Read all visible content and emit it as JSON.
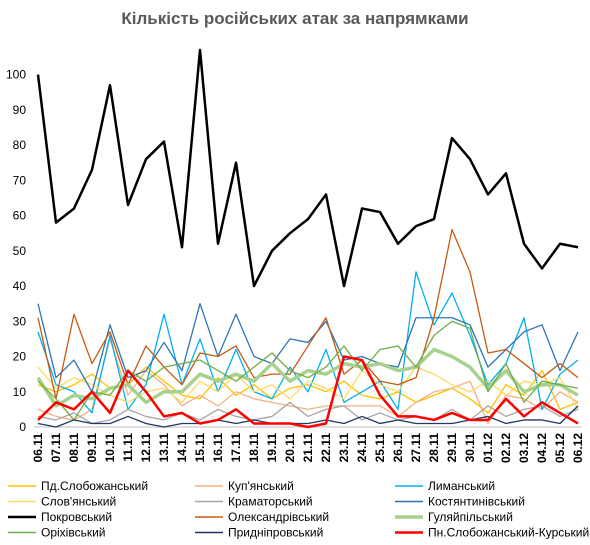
{
  "chart_data": {
    "type": "line",
    "title": "Кількість російських атак за напрямками",
    "categories": [
      "06.11",
      "07.11",
      "08.11",
      "09.11",
      "10.11",
      "11.11",
      "12.11",
      "13.11",
      "14.11",
      "15.11",
      "16.11",
      "17.11",
      "18.11",
      "19.11",
      "20.11",
      "21.11",
      "22.11",
      "23.11",
      "24.11",
      "25.11",
      "26.11",
      "27.11",
      "28.11",
      "29.11",
      "30.11",
      "01.12",
      "02.12",
      "03.12",
      "04.12",
      "05.12",
      "06.12"
    ],
    "ylim": [
      0,
      105
    ],
    "yticks": [
      0,
      10,
      20,
      30,
      40,
      50,
      60,
      70,
      80,
      90,
      100
    ],
    "grid": false,
    "series": [
      {
        "name": "Пд.Слобожанський",
        "color": "#ffc000",
        "values": [
          12,
          10,
          12,
          15,
          11,
          12,
          17,
          13,
          9,
          8,
          14,
          9,
          12,
          8,
          11,
          12,
          10,
          13,
          9,
          8,
          10,
          7,
          9,
          11,
          8,
          4,
          12,
          9,
          16,
          5,
          7
        ]
      },
      {
        "name": "Куп'янський",
        "color": "#f4b183",
        "values": [
          5,
          3,
          2,
          5,
          25,
          9,
          16,
          12,
          6,
          9,
          6,
          10,
          8,
          7,
          6,
          5,
          6,
          6,
          6,
          6,
          3,
          7,
          10,
          11,
          13,
          1,
          9,
          8,
          5,
          10,
          7
        ]
      },
      {
        "name": "Лиманський",
        "color": "#00b0f0",
        "values": [
          27,
          12,
          10,
          4,
          26,
          5,
          12,
          32,
          12,
          25,
          10,
          22,
          10,
          8,
          17,
          10,
          22,
          7,
          10,
          13,
          5,
          44,
          29,
          38,
          26,
          12,
          18,
          31,
          5,
          15,
          19
        ]
      },
      {
        "name": "Слов'янський",
        "color": "#ffd966",
        "values": [
          17,
          11,
          14,
          12,
          9,
          7,
          10,
          11,
          7,
          13,
          10,
          15,
          10,
          12,
          8,
          13,
          11,
          8,
          16,
          12,
          10,
          17,
          15,
          12,
          10,
          13,
          9,
          13,
          12,
          14,
          5
        ]
      },
      {
        "name": "Краматорський",
        "color": "#a6a6a6",
        "values": [
          3,
          2,
          4,
          1,
          2,
          5,
          3,
          2,
          4,
          2,
          5,
          3,
          2,
          3,
          7,
          3,
          5,
          6,
          2,
          4,
          2,
          3,
          2,
          5,
          2,
          6,
          3,
          5,
          6,
          3,
          5
        ]
      },
      {
        "name": "Костянтинівський",
        "color": "#2e75b6",
        "values": [
          35,
          14,
          19,
          10,
          29,
          14,
          16,
          24,
          16,
          35,
          20,
          32,
          20,
          18,
          25,
          24,
          30,
          19,
          20,
          18,
          17,
          31,
          31,
          31,
          29,
          17,
          22,
          27,
          29,
          16,
          27
        ]
      },
      {
        "name": "Покровський",
        "color": "#000000",
        "values": [
          100,
          58,
          62,
          73,
          97,
          63,
          76,
          81,
          51,
          107,
          52,
          75,
          40,
          50,
          55,
          59,
          66,
          40,
          62,
          61,
          52,
          57,
          59,
          82,
          76,
          66,
          72,
          52,
          45,
          52,
          51
        ]
      },
      {
        "name": "Олександрівський",
        "color": "#c55a11",
        "values": [
          31,
          8,
          32,
          18,
          27,
          12,
          23,
          17,
          12,
          21,
          20,
          23,
          14,
          15,
          15,
          23,
          31,
          15,
          19,
          13,
          12,
          14,
          31,
          56,
          44,
          21,
          22,
          18,
          14,
          18,
          14
        ]
      },
      {
        "name": "Гуляйпільський",
        "color": "#a9d18e",
        "values": [
          14,
          6,
          9,
          8,
          11,
          12,
          7,
          10,
          10,
          15,
          13,
          15,
          13,
          18,
          13,
          16,
          15,
          18,
          17,
          18,
          16,
          17,
          22,
          20,
          17,
          11,
          16,
          10,
          12,
          12,
          9
        ]
      },
      {
        "name": "Оріхівський",
        "color": "#70ad47",
        "values": [
          13,
          8,
          2,
          10,
          9,
          16,
          13,
          17,
          18,
          19,
          16,
          13,
          17,
          21,
          16,
          14,
          17,
          23,
          16,
          22,
          23,
          17,
          26,
          30,
          28,
          10,
          18,
          7,
          13,
          12,
          11
        ]
      },
      {
        "name": "Придніпровський",
        "color": "#1f3864",
        "values": [
          1,
          0,
          2,
          1,
          1,
          3,
          1,
          0,
          1,
          1,
          2,
          1,
          2,
          1,
          1,
          1,
          2,
          1,
          3,
          1,
          2,
          1,
          1,
          1,
          2,
          3,
          1,
          2,
          2,
          1,
          6
        ]
      },
      {
        "name": "Пн.Слобожанський-Курський",
        "color": "#ff0000",
        "values": [
          2,
          7,
          5,
          10,
          4,
          16,
          10,
          3,
          4,
          1,
          2,
          5,
          1,
          1,
          1,
          0,
          1,
          20,
          19,
          9,
          3,
          3,
          2,
          4,
          2,
          2,
          8,
          3,
          7,
          4,
          1
        ]
      }
    ]
  }
}
